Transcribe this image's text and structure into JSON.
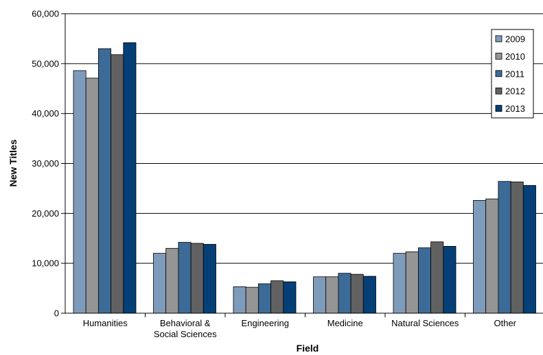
{
  "chart_data": {
    "type": "bar",
    "title": "",
    "xlabel": "Field",
    "ylabel": "New Titles",
    "ylim": [
      0,
      60000
    ],
    "yticks": [
      "0",
      "10,000",
      "20,000",
      "30,000",
      "40,000",
      "50,000",
      "60,000"
    ],
    "grid": true,
    "legend_position": "top-right",
    "categories": [
      [
        "Humanities"
      ],
      [
        "Behavioral &",
        "Social Sciences"
      ],
      [
        "Engineering"
      ],
      [
        "Medicine"
      ],
      [
        "Natural Sciences"
      ],
      [
        "Other"
      ]
    ],
    "series": [
      {
        "name": "2009",
        "color": "#7f9bbb",
        "values": [
          48600,
          12000,
          5300,
          7300,
          12000,
          22600
        ]
      },
      {
        "name": "2010",
        "color": "#959595",
        "values": [
          47100,
          13000,
          5200,
          7300,
          12300,
          22900
        ]
      },
      {
        "name": "2011",
        "color": "#3d6b98",
        "values": [
          53000,
          14200,
          5900,
          8000,
          13100,
          26400
        ]
      },
      {
        "name": "2012",
        "color": "#616161",
        "values": [
          51800,
          14000,
          6500,
          7800,
          14300,
          26300
        ]
      },
      {
        "name": "2013",
        "color": "#053f78",
        "values": [
          54200,
          13800,
          6300,
          7400,
          13400,
          25600
        ]
      }
    ]
  }
}
